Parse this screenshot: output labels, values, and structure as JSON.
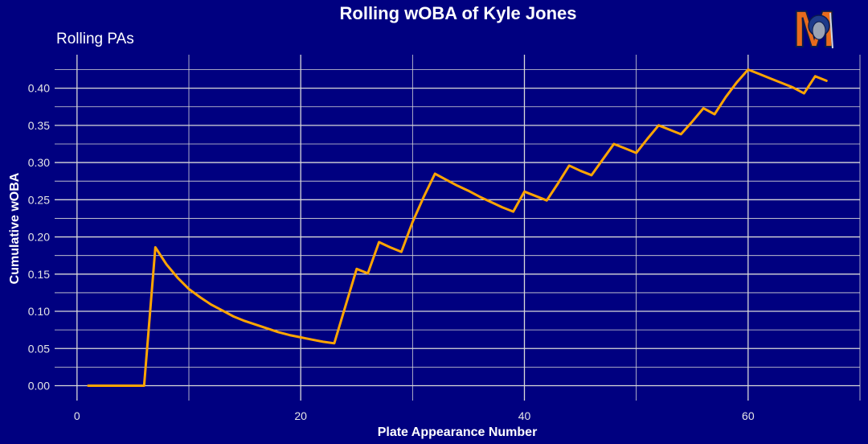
{
  "chart_data": {
    "type": "line",
    "title": "Rolling wOBA of Kyle Jones",
    "subtitle": "Rolling PAs",
    "xlabel": "Plate Appearance Number",
    "ylabel": "Cumulative wOBA",
    "xlim": [
      -2,
      70
    ],
    "ylim": [
      -0.02,
      0.445
    ],
    "x_ticks": [
      0,
      20,
      40,
      60
    ],
    "x_tick_labels": [
      "0",
      "20",
      "40",
      "60"
    ],
    "y_ticks": [
      0.0,
      0.05,
      0.1,
      0.15,
      0.2,
      0.25,
      0.3,
      0.35,
      0.4
    ],
    "y_tick_labels": [
      "0.00",
      "0.05",
      "0.10",
      "0.15",
      "0.20",
      "0.25",
      "0.30",
      "0.35",
      "0.40"
    ],
    "grid": true,
    "legend": "none",
    "series": [
      {
        "color": "#ffa500",
        "x": [
          1,
          2,
          3,
          4,
          5,
          6,
          7,
          8,
          9,
          10,
          11,
          12,
          13,
          14,
          15,
          16,
          17,
          18,
          19,
          20,
          21,
          22,
          23,
          24,
          25,
          26,
          27,
          28,
          29,
          30,
          31,
          32,
          33,
          34,
          35,
          36,
          37,
          38,
          39,
          40,
          41,
          42,
          43,
          44,
          45,
          46,
          47,
          48,
          49,
          50,
          51,
          52,
          53,
          54,
          55,
          56,
          57,
          58,
          59,
          60,
          61,
          62,
          63,
          64,
          65,
          66,
          67
        ],
        "y": [
          0.0,
          0.0,
          0.0,
          0.0,
          0.0,
          0.0,
          0.186,
          0.163,
          0.145,
          0.13,
          0.119,
          0.109,
          0.101,
          0.093,
          0.087,
          0.082,
          0.077,
          0.072,
          0.068,
          0.065,
          0.062,
          0.059,
          0.057,
          0.107,
          0.157,
          0.151,
          0.193,
          0.186,
          0.18,
          0.22,
          0.254,
          0.285,
          0.277,
          0.269,
          0.262,
          0.254,
          0.247,
          0.24,
          0.234,
          0.261,
          0.255,
          0.249,
          0.272,
          0.296,
          0.289,
          0.283,
          0.304,
          0.325,
          0.319,
          0.313,
          0.332,
          0.35,
          0.344,
          0.338,
          0.355,
          0.373,
          0.365,
          0.388,
          0.408,
          0.425,
          0.419,
          0.413,
          0.407,
          0.401,
          0.393,
          0.416,
          0.41
        ]
      }
    ]
  },
  "logo": {
    "letter": "M",
    "primary_color": "#e86b1c",
    "secondary_color": "#1e3a8a"
  }
}
